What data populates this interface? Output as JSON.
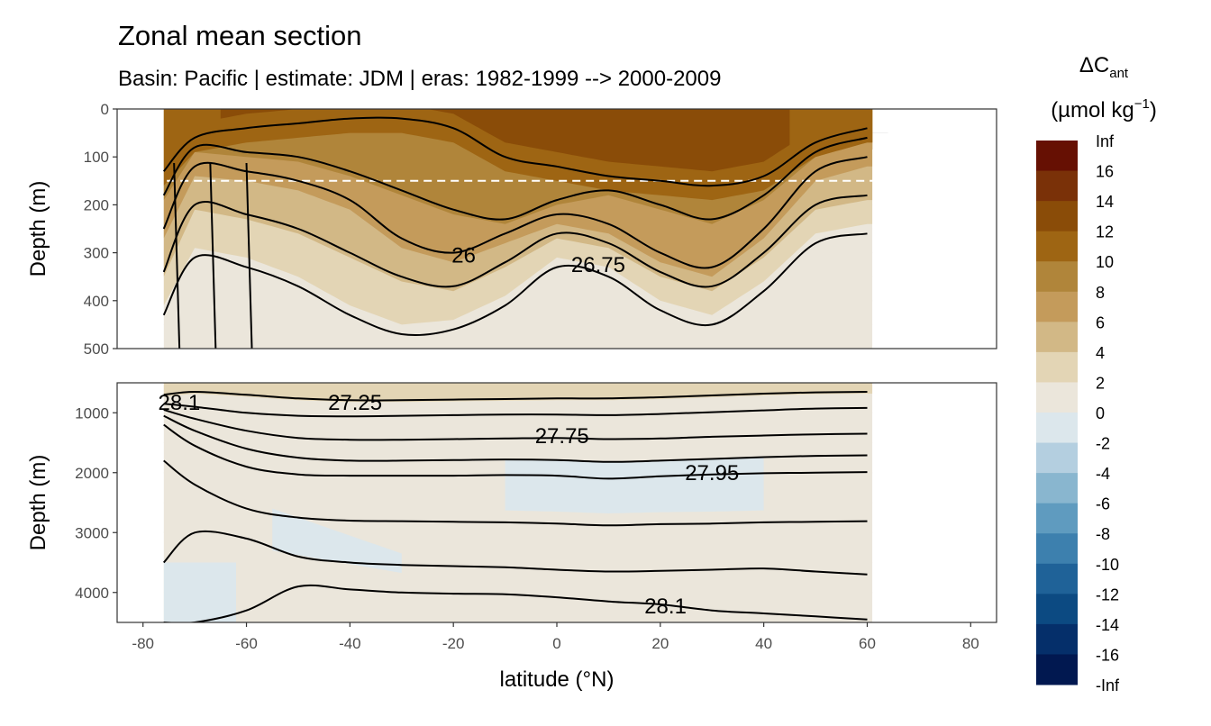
{
  "chart_data": {
    "type": "heatmap",
    "title": "Zonal mean section",
    "subtitle": "Basin: Pacific | estimate: JDM  | eras: 1982-1999 --> 2000-2009",
    "xlabel": "latitude (°N)",
    "ylabel": "Depth (m)",
    "xlim": [
      -85,
      85
    ],
    "x_ticks": [
      -80,
      -60,
      -40,
      -20,
      0,
      20,
      40,
      60,
      80
    ],
    "grid": true,
    "panels": [
      {
        "name": "upper",
        "ylim": [
          500,
          0
        ],
        "y_ticks": [
          0,
          100,
          200,
          300,
          400,
          500
        ],
        "reference_depth": 150
      },
      {
        "name": "lower",
        "ylim": [
          4500,
          500
        ],
        "y_ticks": [
          1000,
          2000,
          3000,
          4000
        ]
      }
    ],
    "legend": {
      "title_main": "ΔC",
      "title_sub": "ant",
      "units_pre": "(µmol kg",
      "units_sup": "−1",
      "units_post": ")",
      "position": "right",
      "breaks": [
        "Inf",
        "16",
        "14",
        "12",
        "10",
        "8",
        "6",
        "4",
        "2",
        "0",
        "-2",
        "-4",
        "-6",
        "-8",
        "-10",
        "-12",
        "-14",
        "-16",
        "-Inf"
      ],
      "colors": [
        "#661003",
        "#7a3108",
        "#8a4c08",
        "#9e6513",
        "#b0853a",
        "#c49b5b",
        "#d2b886",
        "#e3d5b5",
        "#ebe6db",
        "#dce7ec",
        "#b4cfe0",
        "#89b6cf",
        "#5f9bbf",
        "#3d80ae",
        "#1f6298",
        "#0c4a82",
        "#052f6a",
        "#011850"
      ]
    },
    "contour_labels": [
      {
        "text": "26",
        "lat": -18,
        "depth": 305
      },
      {
        "text": "26.75",
        "lat": 8,
        "depth": 325
      },
      {
        "text": "28.1",
        "lat": -73,
        "depth": 830
      },
      {
        "text": "27.25",
        "lat": -39,
        "depth": 830
      },
      {
        "text": "27.75",
        "lat": 1,
        "depth": 1390
      },
      {
        "text": "27.95",
        "lat": 30,
        "depth": 2000
      },
      {
        "text": "28.1",
        "lat": 21,
        "depth": 4230
      }
    ],
    "upper_isopycnal_depths": {
      "lat": [
        -76,
        -70,
        -60,
        -50,
        -40,
        -30,
        -20,
        -10,
        0,
        10,
        20,
        30,
        40,
        50,
        60
      ],
      "lines": [
        [
          130,
          60,
          40,
          30,
          20,
          20,
          40,
          100,
          120,
          140,
          150,
          160,
          140,
          70,
          40
        ],
        [
          180,
          80,
          90,
          100,
          130,
          170,
          210,
          230,
          190,
          170,
          200,
          230,
          180,
          90,
          60
        ],
        [
          250,
          120,
          130,
          150,
          190,
          270,
          300,
          260,
          220,
          240,
          300,
          330,
          250,
          130,
          100
        ],
        [
          340,
          200,
          220,
          250,
          300,
          350,
          370,
          320,
          260,
          280,
          340,
          370,
          300,
          200,
          180
        ],
        [
          430,
          310,
          330,
          370,
          430,
          470,
          460,
          410,
          330,
          350,
          420,
          450,
          380,
          280,
          260
        ]
      ]
    },
    "lower_isopycnal_depths": {
      "lat": [
        -76,
        -70,
        -60,
        -50,
        -40,
        -30,
        -20,
        -10,
        0,
        10,
        20,
        30,
        40,
        50,
        60
      ],
      "lines": [
        [
          700,
          650,
          700,
          760,
          790,
          790,
          780,
          770,
          760,
          760,
          740,
          710,
          680,
          660,
          650
        ],
        [
          850,
          900,
          1000,
          1050,
          1060,
          1050,
          1040,
          1030,
          1030,
          1040,
          1020,
          990,
          960,
          930,
          920
        ],
        [
          950,
          1100,
          1300,
          1420,
          1450,
          1450,
          1440,
          1430,
          1420,
          1440,
          1430,
          1400,
          1380,
          1360,
          1350
        ],
        [
          1050,
          1300,
          1600,
          1750,
          1800,
          1800,
          1790,
          1780,
          1790,
          1820,
          1800,
          1770,
          1740,
          1720,
          1710
        ],
        [
          1200,
          1550,
          1900,
          2030,
          2050,
          2050,
          2050,
          2040,
          2050,
          2100,
          2060,
          2030,
          2010,
          2000,
          1990
        ],
        [
          1800,
          2200,
          2600,
          2750,
          2800,
          2810,
          2820,
          2830,
          2850,
          2880,
          2860,
          2850,
          2830,
          2820,
          2810
        ],
        [
          3500,
          3000,
          3100,
          3400,
          3500,
          3540,
          3560,
          3580,
          3620,
          3650,
          3640,
          3620,
          3600,
          3650,
          3700
        ],
        [
          4500,
          4500,
          4300,
          3900,
          3950,
          4000,
          4020,
          4030,
          4080,
          4150,
          4200,
          4300,
          4350,
          4400,
          4450
        ]
      ]
    }
  }
}
